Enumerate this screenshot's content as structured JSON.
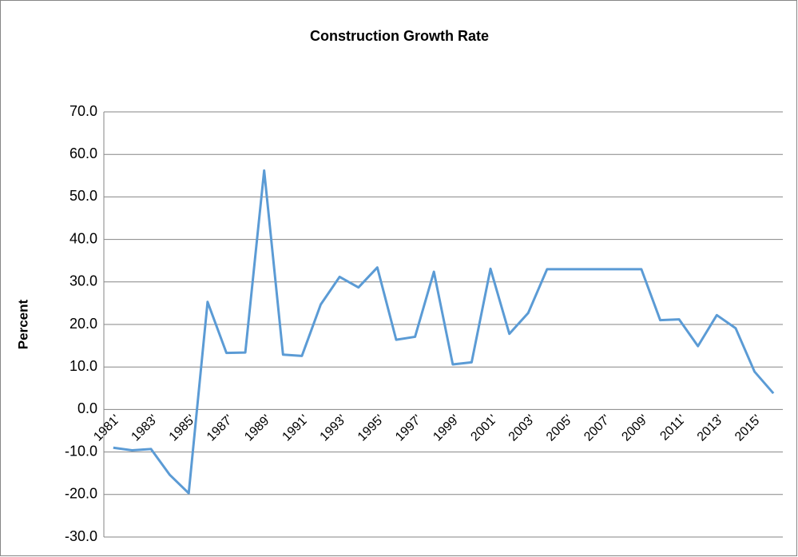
{
  "chart_data": {
    "type": "line",
    "title": "Construction Growth Rate",
    "y_label": "Percent",
    "categories": [
      "1981'",
      null,
      "1983'",
      null,
      "1985'",
      null,
      "1987'",
      null,
      "1989'",
      null,
      "1991'",
      null,
      "1993'",
      null,
      "1995'",
      null,
      "1997'",
      null,
      "1999'",
      null,
      "2001'",
      null,
      "2003'",
      null,
      "2005'",
      null,
      "2007'",
      null,
      "2009'",
      null,
      "2011'",
      null,
      "2013'",
      null,
      "2015'",
      null
    ],
    "values": [
      -9.0,
      -9.6,
      -9.3,
      -15.4,
      -19.7,
      25.3,
      13.3,
      13.4,
      56.2,
      12.9,
      12.6,
      24.7,
      31.2,
      28.7,
      33.4,
      16.4,
      17.1,
      32.4,
      10.6,
      11.1,
      33.1,
      17.8,
      22.7,
      33.0,
      33.0,
      33.0,
      33.0,
      33.0,
      33.0,
      21.0,
      21.2,
      14.9,
      22.2,
      19.1,
      8.9,
      3.8
    ],
    "color": "#5b9bd5",
    "ylim": [
      -30,
      70
    ],
    "yticks": [
      {
        "value": -30,
        "label": "-30.0"
      },
      {
        "value": -20,
        "label": "-20.0"
      },
      {
        "value": -10,
        "label": "-10.0"
      },
      {
        "value": 0,
        "label": "0.0"
      },
      {
        "value": 10,
        "label": "10.0"
      },
      {
        "value": 20,
        "label": "20.0"
      },
      {
        "value": 30,
        "label": "30.0"
      },
      {
        "value": 40,
        "label": "40.0"
      },
      {
        "value": 50,
        "label": "50.0"
      },
      {
        "value": 60,
        "label": "60.0"
      },
      {
        "value": 70,
        "label": "70.0"
      }
    ],
    "grid": true
  }
}
